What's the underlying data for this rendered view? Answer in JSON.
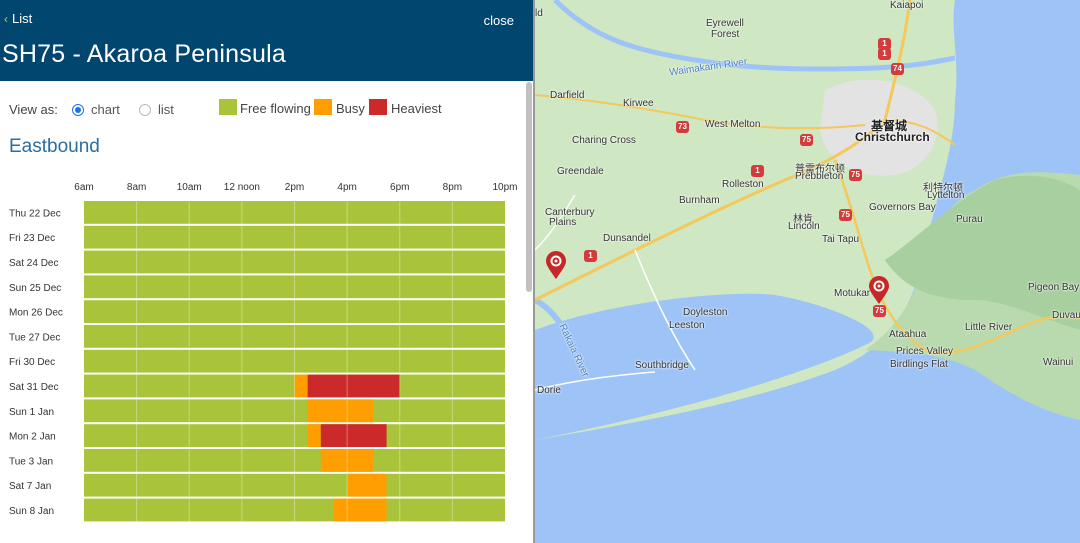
{
  "header": {
    "back_label": "List",
    "close_label": "close",
    "title": "SH75 - Akaroa Peninsula"
  },
  "view": {
    "label": "View as:",
    "options": [
      "chart",
      "list"
    ],
    "selected": "chart"
  },
  "legend": [
    {
      "label": "Free flowing",
      "color": "#a9c43a"
    },
    {
      "label": "Busy",
      "color": "#ff9e00"
    },
    {
      "label": "Heaviest",
      "color": "#cc2a2a"
    }
  ],
  "direction": "Eastbound",
  "chart_data": {
    "type": "heatmap",
    "time_labels": [
      "6am",
      "8am",
      "10am",
      "12 noon",
      "2pm",
      "4pm",
      "6pm",
      "8pm",
      "10pm"
    ],
    "x_range_hours": [
      6,
      22
    ],
    "rows": [
      {
        "day": "Thu 22 Dec",
        "segments": []
      },
      {
        "day": "Fri 23 Dec",
        "segments": []
      },
      {
        "day": "Sat 24 Dec",
        "segments": []
      },
      {
        "day": "Sun 25 Dec",
        "segments": []
      },
      {
        "day": "Mon 26 Dec",
        "segments": []
      },
      {
        "day": "Tue 27 Dec",
        "segments": []
      },
      {
        "day": "Fri 30 Dec",
        "segments": []
      },
      {
        "day": "Sat 31 Dec",
        "segments": [
          {
            "from": 14,
            "to": 14.5,
            "level": "Busy"
          },
          {
            "from": 14.5,
            "to": 18,
            "level": "Heaviest"
          }
        ]
      },
      {
        "day": "Sun 1 Jan",
        "segments": [
          {
            "from": 14.5,
            "to": 17,
            "level": "Busy"
          }
        ]
      },
      {
        "day": "Mon 2 Jan",
        "segments": [
          {
            "from": 14.5,
            "to": 15,
            "level": "Busy"
          },
          {
            "from": 15,
            "to": 17.5,
            "level": "Heaviest"
          }
        ]
      },
      {
        "day": "Tue 3 Jan",
        "segments": [
          {
            "from": 15,
            "to": 17,
            "level": "Busy"
          }
        ]
      },
      {
        "day": "Sat 7 Jan",
        "segments": [
          {
            "from": 16,
            "to": 17.5,
            "level": "Busy"
          }
        ]
      },
      {
        "day": "Sun 8 Jan",
        "segments": [
          {
            "from": 15.5,
            "to": 17.5,
            "level": "Busy"
          }
        ]
      }
    ],
    "default_level": "Free flowing"
  },
  "map": {
    "labels": [
      {
        "text": "Kaiapoi",
        "big": false
      },
      {
        "text": "Eyrewell",
        "big": false
      },
      {
        "text": "Forest",
        "big": false
      },
      {
        "text": "Waimakariri River",
        "big": false
      },
      {
        "text": "Darfield",
        "big": false
      },
      {
        "text": "Kirwee",
        "big": false
      },
      {
        "text": "West Melton",
        "big": false
      },
      {
        "text": "基督城",
        "big": true
      },
      {
        "text": "Christchurch",
        "big": true
      },
      {
        "text": "Charing Cross",
        "big": false
      },
      {
        "text": "普雷布尔顿",
        "big": false
      },
      {
        "text": "Prebbleton",
        "big": false
      },
      {
        "text": "Greendale",
        "big": false
      },
      {
        "text": "Rolleston",
        "big": false
      },
      {
        "text": "利特尔顿",
        "big": false
      },
      {
        "text": "Lyttelton",
        "big": false
      },
      {
        "text": "Burnham",
        "big": false
      },
      {
        "text": "Governors Bay",
        "big": false
      },
      {
        "text": "Canterbury",
        "big": false
      },
      {
        "text": "Plains",
        "big": false
      },
      {
        "text": "林肯",
        "big": false
      },
      {
        "text": "Lincoln",
        "big": false
      },
      {
        "text": "Purau",
        "big": false
      },
      {
        "text": "Dunsandel",
        "big": false
      },
      {
        "text": "Tai Tapu",
        "big": false
      },
      {
        "text": "Pigeon Bay",
        "big": false
      },
      {
        "text": "Motukar",
        "big": false
      },
      {
        "text": "Doyleston",
        "big": false
      },
      {
        "text": "Leeston",
        "big": false
      },
      {
        "text": "Ataahua",
        "big": false
      },
      {
        "text": "Little River",
        "big": false
      },
      {
        "text": "Duvau",
        "big": false
      },
      {
        "text": "Rakaia River",
        "big": false
      },
      {
        "text": "Prices Valley",
        "big": false
      },
      {
        "text": "Birdlings Flat",
        "big": false
      },
      {
        "text": "Wainui",
        "big": false
      },
      {
        "text": "Southbridge",
        "big": false
      },
      {
        "text": "Dorie",
        "big": false
      },
      {
        "text": "ld",
        "big": false
      }
    ],
    "shields": [
      "1",
      "74",
      "73",
      "1",
      "75",
      "75",
      "1",
      "75",
      "1",
      "75"
    ]
  }
}
